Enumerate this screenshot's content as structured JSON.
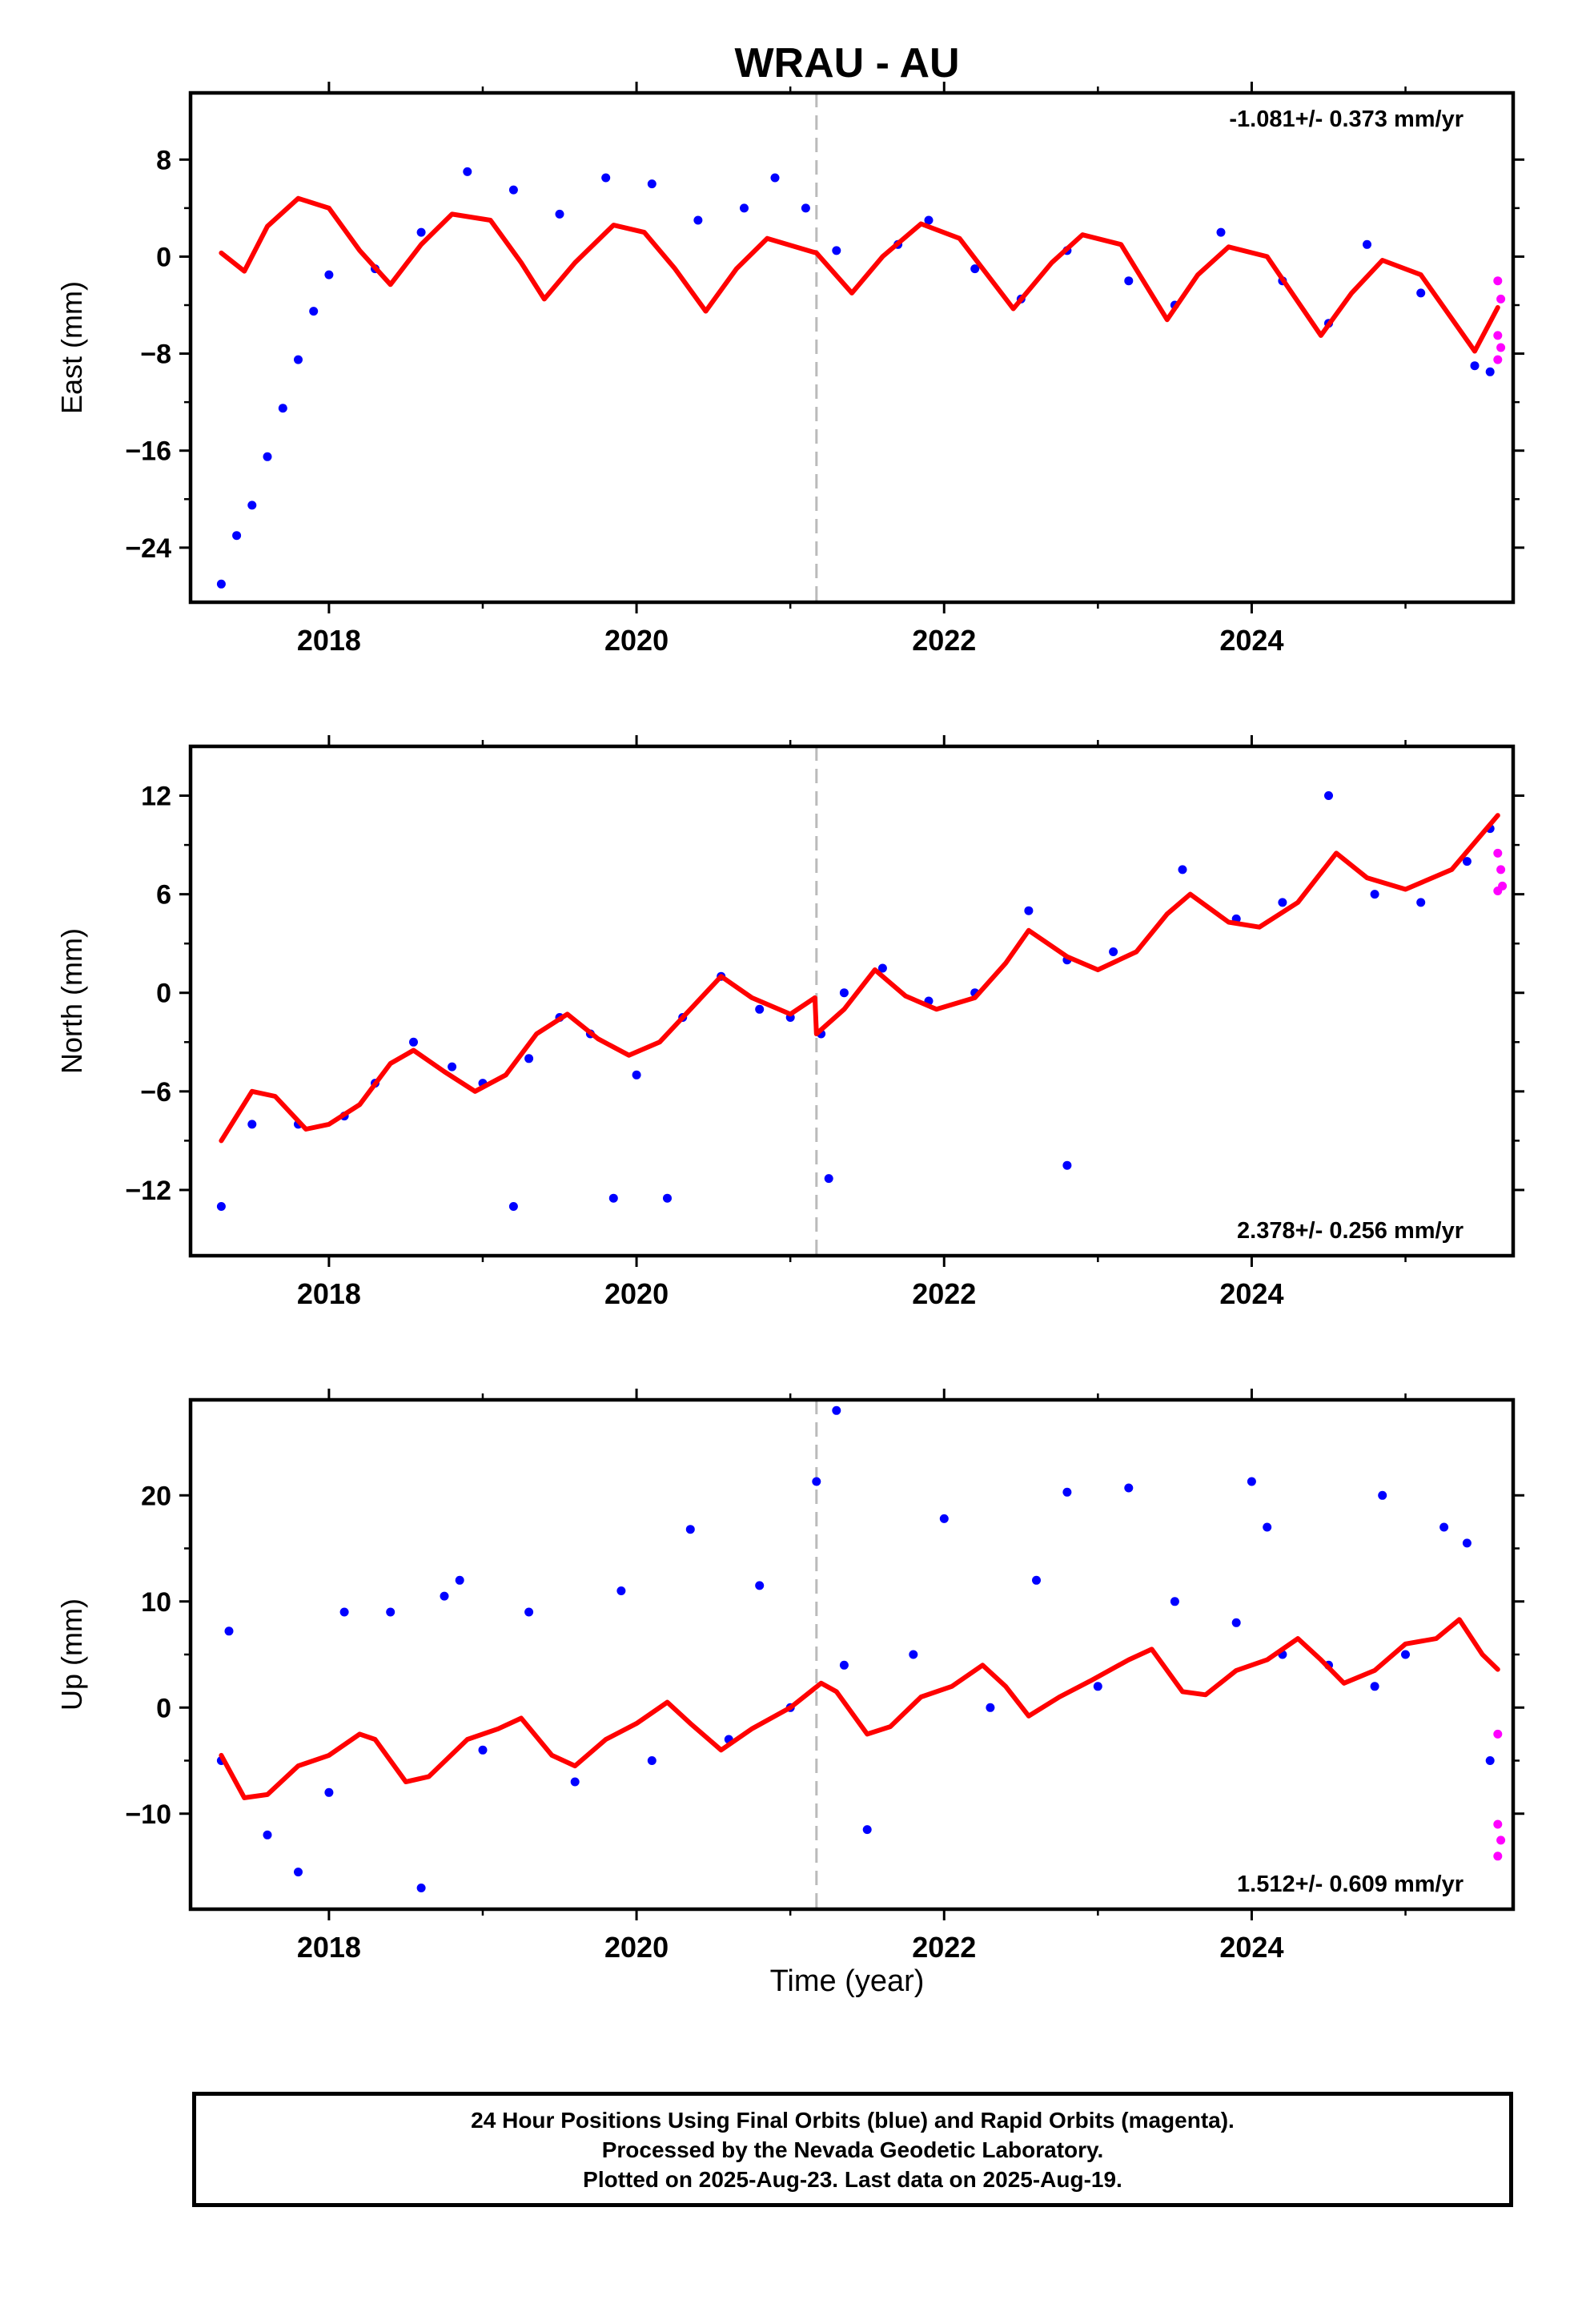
{
  "title": "WRAU - AU",
  "xlabel": "Time (year)",
  "caption": [
    "24 Hour Positions Using Final Orbits (blue) and Rapid Orbits (magenta).",
    "Processed by the Nevada Geodetic Laboratory.",
    "Plotted on 2025-Aug-23. Last data on 2025-Aug-19."
  ],
  "colors": {
    "final": "#0000ff",
    "rapid": "#ff00ff",
    "model": "#ff0000",
    "event_line": "#bbbbbb",
    "axes": "#000000"
  },
  "chart_data": [
    {
      "type": "scatter",
      "component": "east",
      "ylabel": "East (mm)",
      "rate_label": "-1.081+/- 0.373 mm/yr",
      "rate_placement": "top-right",
      "xlim": [
        2017.1,
        2025.7
      ],
      "ylim": [
        -28.5,
        13.5
      ],
      "x_ticks": [
        2018,
        2020,
        2022,
        2024
      ],
      "x_tick_labels": [
        "2018",
        "2020",
        "2022",
        "2024"
      ],
      "y_ticks": [
        8,
        0,
        -8,
        -16,
        -24
      ],
      "y_tick_labels": [
        "8",
        "0",
        "−8",
        "−16",
        "−24"
      ],
      "event_line_x": 2021.17,
      "series": [
        {
          "role": "final",
          "points": [
            [
              2017.3,
              -27.0
            ],
            [
              2017.4,
              -23.0
            ],
            [
              2017.5,
              -20.5
            ],
            [
              2017.6,
              -16.5
            ],
            [
              2017.7,
              -12.5
            ],
            [
              2017.8,
              -8.5
            ],
            [
              2017.9,
              -4.5
            ],
            [
              2018.0,
              -1.5
            ],
            [
              2018.3,
              -1.0
            ],
            [
              2018.6,
              2.0
            ],
            [
              2018.9,
              7.0
            ],
            [
              2019.2,
              5.5
            ],
            [
              2019.5,
              3.5
            ],
            [
              2019.8,
              6.5
            ],
            [
              2020.1,
              6.0
            ],
            [
              2020.4,
              3.0
            ],
            [
              2020.7,
              4.0
            ],
            [
              2020.9,
              6.5
            ],
            [
              2021.1,
              4.0
            ],
            [
              2021.3,
              0.5
            ],
            [
              2021.7,
              1.0
            ],
            [
              2021.9,
              3.0
            ],
            [
              2022.2,
              -1.0
            ],
            [
              2022.5,
              -3.5
            ],
            [
              2022.8,
              0.5
            ],
            [
              2023.2,
              -2.0
            ],
            [
              2023.5,
              -4.0
            ],
            [
              2023.8,
              2.0
            ],
            [
              2024.2,
              -2.0
            ],
            [
              2024.5,
              -5.5
            ],
            [
              2024.75,
              1.0
            ],
            [
              2025.1,
              -3.0
            ],
            [
              2025.45,
              -9.0
            ],
            [
              2025.55,
              -9.5
            ]
          ]
        },
        {
          "role": "rapid",
          "points": [
            [
              2025.6,
              -2.0
            ],
            [
              2025.62,
              -3.5
            ],
            [
              2025.6,
              -6.5
            ],
            [
              2025.62,
              -7.5
            ],
            [
              2025.6,
              -8.5
            ]
          ]
        }
      ],
      "model_curve": [
        [
          2017.3,
          0.3
        ],
        [
          2017.45,
          -1.2
        ],
        [
          2017.6,
          2.5
        ],
        [
          2017.8,
          4.8
        ],
        [
          2018.0,
          4.0
        ],
        [
          2018.2,
          0.5
        ],
        [
          2018.4,
          -2.3
        ],
        [
          2018.6,
          1.0
        ],
        [
          2018.8,
          3.5
        ],
        [
          2019.05,
          3.0
        ],
        [
          2019.25,
          -0.5
        ],
        [
          2019.4,
          -3.5
        ],
        [
          2019.6,
          -0.5
        ],
        [
          2019.85,
          2.6
        ],
        [
          2020.05,
          2.0
        ],
        [
          2020.25,
          -1.0
        ],
        [
          2020.45,
          -4.5
        ],
        [
          2020.65,
          -1.0
        ],
        [
          2020.85,
          1.5
        ],
        [
          2021.17,
          0.3
        ],
        [
          2021.4,
          -3.0
        ],
        [
          2021.6,
          0.0
        ],
        [
          2021.85,
          2.7
        ],
        [
          2022.1,
          1.5
        ],
        [
          2022.45,
          -4.3
        ],
        [
          2022.7,
          -0.5
        ],
        [
          2022.9,
          1.8
        ],
        [
          2023.15,
          1.0
        ],
        [
          2023.45,
          -5.2
        ],
        [
          2023.65,
          -1.5
        ],
        [
          2023.85,
          0.8
        ],
        [
          2024.1,
          0.0
        ],
        [
          2024.45,
          -6.5
        ],
        [
          2024.65,
          -3.0
        ],
        [
          2024.85,
          -0.3
        ],
        [
          2025.1,
          -1.5
        ],
        [
          2025.45,
          -7.8
        ],
        [
          2025.6,
          -4.2
        ]
      ]
    },
    {
      "type": "scatter",
      "component": "north",
      "ylabel": "North (mm)",
      "rate_label": "2.378+/- 0.256 mm/yr",
      "rate_placement": "bottom-right",
      "xlim": [
        2017.1,
        2025.7
      ],
      "ylim": [
        -16,
        15
      ],
      "x_ticks": [
        2018,
        2020,
        2022,
        2024
      ],
      "x_tick_labels": [
        "2018",
        "2020",
        "2022",
        "2024"
      ],
      "y_ticks": [
        12,
        6,
        0,
        -6,
        -12
      ],
      "y_tick_labels": [
        "12",
        "6",
        "0",
        "−6",
        "−12"
      ],
      "event_line_x": 2021.17,
      "series": [
        {
          "role": "final",
          "points": [
            [
              2017.3,
              -13.0
            ],
            [
              2017.5,
              -8.0
            ],
            [
              2017.8,
              -8.0
            ],
            [
              2018.1,
              -7.5
            ],
            [
              2018.3,
              -5.5
            ],
            [
              2018.55,
              -3.0
            ],
            [
              2018.8,
              -4.5
            ],
            [
              2019.0,
              -5.5
            ],
            [
              2019.2,
              -13.0
            ],
            [
              2019.3,
              -4.0
            ],
            [
              2019.5,
              -1.5
            ],
            [
              2019.7,
              -2.5
            ],
            [
              2019.85,
              -12.5
            ],
            [
              2020.0,
              -5.0
            ],
            [
              2020.2,
              -12.5
            ],
            [
              2020.3,
              -1.5
            ],
            [
              2020.55,
              1.0
            ],
            [
              2020.8,
              -1.0
            ],
            [
              2021.0,
              -1.5
            ],
            [
              2021.2,
              -2.5
            ],
            [
              2021.25,
              -11.3
            ],
            [
              2021.35,
              0.0
            ],
            [
              2021.6,
              1.5
            ],
            [
              2021.9,
              -0.5
            ],
            [
              2022.2,
              0.0
            ],
            [
              2022.55,
              5.0
            ],
            [
              2022.8,
              -10.5
            ],
            [
              2022.8,
              2.0
            ],
            [
              2023.1,
              2.5
            ],
            [
              2023.55,
              7.5
            ],
            [
              2023.9,
              4.5
            ],
            [
              2024.2,
              5.5
            ],
            [
              2024.5,
              12.0
            ],
            [
              2024.8,
              6.0
            ],
            [
              2025.1,
              5.5
            ],
            [
              2025.4,
              8.0
            ],
            [
              2025.55,
              10.0
            ]
          ]
        },
        {
          "role": "rapid",
          "points": [
            [
              2025.6,
              8.5
            ],
            [
              2025.62,
              7.5
            ],
            [
              2025.6,
              6.2
            ],
            [
              2025.63,
              6.5
            ]
          ]
        }
      ],
      "model_curve": [
        [
          2017.3,
          -9.0
        ],
        [
          2017.5,
          -6.0
        ],
        [
          2017.65,
          -6.3
        ],
        [
          2017.85,
          -8.3
        ],
        [
          2018.0,
          -8.0
        ],
        [
          2018.2,
          -6.8
        ],
        [
          2018.4,
          -4.3
        ],
        [
          2018.55,
          -3.5
        ],
        [
          2018.75,
          -4.8
        ],
        [
          2018.95,
          -6.0
        ],
        [
          2019.15,
          -5.0
        ],
        [
          2019.35,
          -2.5
        ],
        [
          2019.55,
          -1.3
        ],
        [
          2019.75,
          -2.8
        ],
        [
          2019.95,
          -3.8
        ],
        [
          2020.15,
          -3.0
        ],
        [
          2020.35,
          -1.0
        ],
        [
          2020.55,
          1.0
        ],
        [
          2020.75,
          -0.3
        ],
        [
          2021.0,
          -1.3
        ],
        [
          2021.16,
          -0.3
        ],
        [
          2021.17,
          -2.5
        ],
        [
          2021.35,
          -1.0
        ],
        [
          2021.55,
          1.4
        ],
        [
          2021.75,
          -0.2
        ],
        [
          2021.95,
          -1.0
        ],
        [
          2022.2,
          -0.3
        ],
        [
          2022.4,
          1.8
        ],
        [
          2022.55,
          3.8
        ],
        [
          2022.8,
          2.2
        ],
        [
          2023.0,
          1.4
        ],
        [
          2023.25,
          2.5
        ],
        [
          2023.45,
          4.8
        ],
        [
          2023.6,
          6.0
        ],
        [
          2023.85,
          4.3
        ],
        [
          2024.05,
          4.0
        ],
        [
          2024.3,
          5.5
        ],
        [
          2024.55,
          8.5
        ],
        [
          2024.75,
          7.0
        ],
        [
          2025.0,
          6.3
        ],
        [
          2025.3,
          7.5
        ],
        [
          2025.6,
          10.8
        ]
      ]
    },
    {
      "type": "scatter",
      "component": "up",
      "ylabel": "Up (mm)",
      "rate_label": "1.512+/- 0.609 mm/yr",
      "rate_placement": "bottom-right",
      "xlim": [
        2017.1,
        2025.7
      ],
      "ylim": [
        -19,
        29
      ],
      "x_ticks": [
        2018,
        2020,
        2022,
        2024
      ],
      "x_tick_labels": [
        "2018",
        "2020",
        "2022",
        "2024"
      ],
      "y_ticks": [
        20,
        10,
        0,
        -10
      ],
      "y_tick_labels": [
        "20",
        "10",
        "0",
        "−10"
      ],
      "event_line_x": 2021.17,
      "series": [
        {
          "role": "final",
          "points": [
            [
              2017.3,
              -5.0
            ],
            [
              2017.35,
              7.2
            ],
            [
              2017.6,
              -12.0
            ],
            [
              2017.8,
              -15.5
            ],
            [
              2018.0,
              -8.0
            ],
            [
              2018.1,
              9.0
            ],
            [
              2018.4,
              9.0
            ],
            [
              2018.6,
              -17.0
            ],
            [
              2018.75,
              10.5
            ],
            [
              2018.85,
              12.0
            ],
            [
              2019.0,
              -4.0
            ],
            [
              2019.3,
              9.0
            ],
            [
              2019.6,
              -7.0
            ],
            [
              2019.9,
              11.0
            ],
            [
              2020.1,
              -5.0
            ],
            [
              2020.35,
              16.8
            ],
            [
              2020.6,
              -3.0
            ],
            [
              2020.8,
              11.5
            ],
            [
              2021.0,
              0.0
            ],
            [
              2021.17,
              21.3
            ],
            [
              2021.3,
              28.0
            ],
            [
              2021.35,
              4.0
            ],
            [
              2021.5,
              -11.5
            ],
            [
              2021.8,
              5.0
            ],
            [
              2022.0,
              17.8
            ],
            [
              2022.3,
              0.0
            ],
            [
              2022.6,
              12.0
            ],
            [
              2022.8,
              20.3
            ],
            [
              2023.0,
              2.0
            ],
            [
              2023.2,
              20.7
            ],
            [
              2023.5,
              10.0
            ],
            [
              2023.9,
              8.0
            ],
            [
              2024.0,
              21.3
            ],
            [
              2024.1,
              17.0
            ],
            [
              2024.2,
              5.0
            ],
            [
              2024.5,
              4.0
            ],
            [
              2024.8,
              2.0
            ],
            [
              2024.85,
              20.0
            ],
            [
              2025.0,
              5.0
            ],
            [
              2025.25,
              17.0
            ],
            [
              2025.4,
              15.5
            ],
            [
              2025.55,
              -5.0
            ]
          ]
        },
        {
          "role": "rapid",
          "points": [
            [
              2025.6,
              -2.5
            ],
            [
              2025.6,
              -11.0
            ],
            [
              2025.62,
              -12.5
            ],
            [
              2025.6,
              -14.0
            ]
          ]
        }
      ],
      "model_curve": [
        [
          2017.3,
          -4.5
        ],
        [
          2017.45,
          -8.5
        ],
        [
          2017.6,
          -8.2
        ],
        [
          2017.8,
          -5.5
        ],
        [
          2018.0,
          -4.5
        ],
        [
          2018.2,
          -2.5
        ],
        [
          2018.3,
          -3.0
        ],
        [
          2018.5,
          -7.0
        ],
        [
          2018.65,
          -6.5
        ],
        [
          2018.9,
          -3.0
        ],
        [
          2019.1,
          -2.0
        ],
        [
          2019.25,
          -1.0
        ],
        [
          2019.45,
          -4.5
        ],
        [
          2019.6,
          -5.5
        ],
        [
          2019.8,
          -3.0
        ],
        [
          2020.0,
          -1.5
        ],
        [
          2020.2,
          0.5
        ],
        [
          2020.35,
          -1.5
        ],
        [
          2020.55,
          -4.0
        ],
        [
          2020.75,
          -2.0
        ],
        [
          2021.0,
          0.0
        ],
        [
          2021.2,
          2.3
        ],
        [
          2021.3,
          1.5
        ],
        [
          2021.5,
          -2.5
        ],
        [
          2021.65,
          -1.8
        ],
        [
          2021.85,
          1.0
        ],
        [
          2022.05,
          2.0
        ],
        [
          2022.25,
          4.0
        ],
        [
          2022.4,
          2.0
        ],
        [
          2022.55,
          -0.8
        ],
        [
          2022.75,
          1.0
        ],
        [
          2022.95,
          2.5
        ],
        [
          2023.2,
          4.5
        ],
        [
          2023.35,
          5.5
        ],
        [
          2023.55,
          1.5
        ],
        [
          2023.7,
          1.2
        ],
        [
          2023.9,
          3.5
        ],
        [
          2024.1,
          4.5
        ],
        [
          2024.3,
          6.5
        ],
        [
          2024.45,
          4.5
        ],
        [
          2024.6,
          2.3
        ],
        [
          2024.8,
          3.5
        ],
        [
          2025.0,
          6.0
        ],
        [
          2025.2,
          6.5
        ],
        [
          2025.35,
          8.3
        ],
        [
          2025.5,
          5.0
        ],
        [
          2025.6,
          3.6
        ]
      ]
    }
  ]
}
